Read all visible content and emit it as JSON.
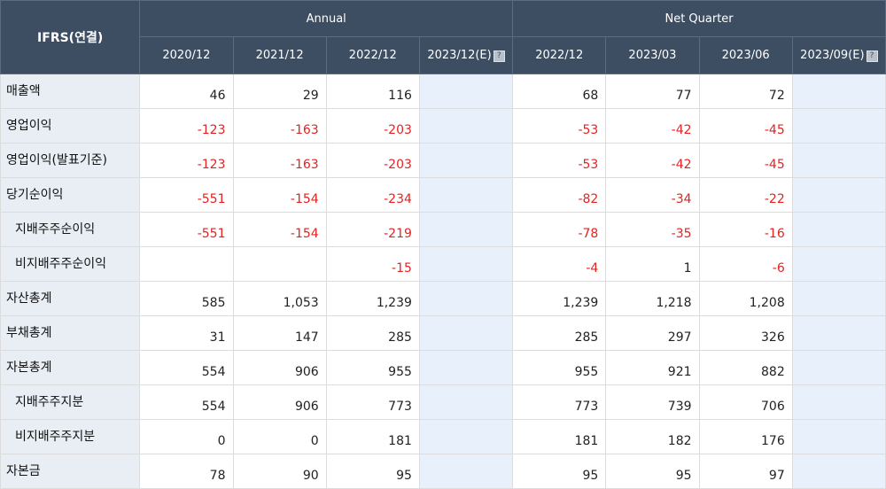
{
  "header": {
    "corner_label": "IFRS(연결)",
    "annual_label": "Annual",
    "quarter_label": "Net Quarter",
    "columns": [
      "2020/12",
      "2021/12",
      "2022/12",
      "2023/12(E)",
      "2022/12",
      "2023/03",
      "2023/06",
      "2023/09(E)"
    ],
    "help_icon_glyph": "?"
  },
  "rows": [
    {
      "label": "매출액",
      "sub": false,
      "values": [
        "46",
        "29",
        "116",
        "",
        "68",
        "77",
        "72",
        ""
      ]
    },
    {
      "label": "영업이익",
      "sub": false,
      "values": [
        "-123",
        "-163",
        "-203",
        "",
        "-53",
        "-42",
        "-45",
        ""
      ]
    },
    {
      "label": "영업이익(발표기준)",
      "sub": false,
      "values": [
        "-123",
        "-163",
        "-203",
        "",
        "-53",
        "-42",
        "-45",
        ""
      ]
    },
    {
      "label": "당기순이익",
      "sub": false,
      "values": [
        "-551",
        "-154",
        "-234",
        "",
        "-82",
        "-34",
        "-22",
        ""
      ]
    },
    {
      "label": "지배주주순이익",
      "sub": true,
      "values": [
        "-551",
        "-154",
        "-219",
        "",
        "-78",
        "-35",
        "-16",
        ""
      ]
    },
    {
      "label": "비지배주주순이익",
      "sub": true,
      "values": [
        "",
        "",
        "-15",
        "",
        "-4",
        "1",
        "-6",
        ""
      ]
    },
    {
      "label": "자산총계",
      "sub": false,
      "values": [
        "585",
        "1,053",
        "1,239",
        "",
        "1,239",
        "1,218",
        "1,208",
        ""
      ]
    },
    {
      "label": "부채총계",
      "sub": false,
      "values": [
        "31",
        "147",
        "285",
        "",
        "285",
        "297",
        "326",
        ""
      ]
    },
    {
      "label": "자본총계",
      "sub": false,
      "values": [
        "554",
        "906",
        "955",
        "",
        "955",
        "921",
        "882",
        ""
      ]
    },
    {
      "label": "지배주주지분",
      "sub": true,
      "values": [
        "554",
        "906",
        "773",
        "",
        "773",
        "739",
        "706",
        ""
      ]
    },
    {
      "label": "비지배주주지분",
      "sub": true,
      "values": [
        "0",
        "0",
        "181",
        "",
        "181",
        "182",
        "176",
        ""
      ]
    },
    {
      "label": "자본금",
      "sub": false,
      "values": [
        "78",
        "90",
        "95",
        "",
        "95",
        "95",
        "97",
        ""
      ]
    }
  ],
  "colors": {
    "header_bg": "#3d4e63",
    "negative": "#e52222",
    "estimate_bg": "#e8f1fb",
    "label_bg": "#e8eef4"
  },
  "estimate_columns": [
    3,
    7
  ]
}
